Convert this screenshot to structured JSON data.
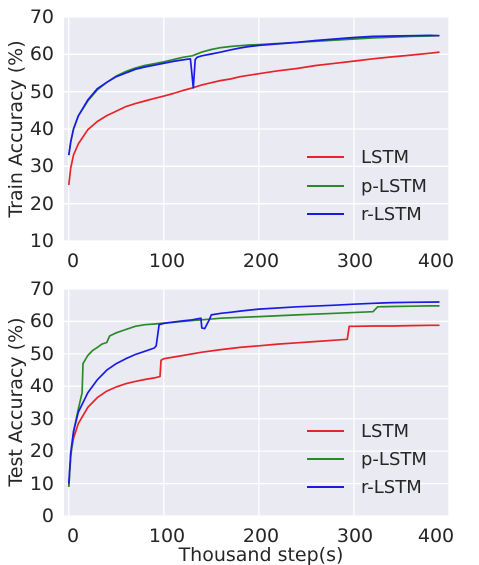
{
  "chart_data": [
    {
      "type": "line",
      "xlabel": "",
      "ylabel": "Train Accuracy (%)",
      "xlim": [
        -5,
        400
      ],
      "ylim": [
        10,
        70
      ],
      "xticks": [
        "0",
        "100",
        "200",
        "300",
        "400"
      ],
      "yticks": [
        "10",
        "20",
        "30",
        "40",
        "50",
        "60",
        "70"
      ],
      "grid": true,
      "legend_position": "lower-right",
      "series": [
        {
          "name": "LSTM",
          "color": "#e8222a",
          "x": [
            0,
            2,
            5,
            10,
            20,
            30,
            40,
            50,
            60,
            70,
            80,
            90,
            100,
            110,
            120,
            130,
            140,
            150,
            160,
            170,
            180,
            190,
            200,
            220,
            240,
            260,
            280,
            300,
            320,
            340,
            360,
            380,
            390
          ],
          "y": [
            25,
            29.5,
            33,
            36,
            39.8,
            42,
            43.6,
            44.8,
            46,
            46.8,
            47.5,
            48.2,
            48.8,
            49.5,
            50.3,
            51,
            51.8,
            52.4,
            53,
            53.4,
            54,
            54.4,
            54.8,
            55.6,
            56.2,
            57,
            57.6,
            58.2,
            58.8,
            59.3,
            59.8,
            60.3,
            60.6
          ]
        },
        {
          "name": "p-LSTM",
          "color": "#2a8a2a",
          "x": [
            0,
            2,
            5,
            10,
            20,
            30,
            40,
            50,
            60,
            70,
            80,
            90,
            100,
            110,
            120,
            130,
            140,
            150,
            160,
            170,
            180,
            190,
            200,
            220,
            240,
            260,
            280,
            300,
            320,
            340,
            360,
            380,
            390
          ],
          "y": [
            33,
            36.5,
            40,
            43.5,
            47.5,
            50.5,
            52.5,
            54.2,
            55.4,
            56.3,
            57,
            57.5,
            58,
            58.6,
            59.2,
            59.6,
            60.6,
            61.3,
            61.8,
            62.1,
            62.3,
            62.5,
            62.6,
            62.9,
            63.2,
            63.5,
            63.8,
            64.1,
            64.4,
            64.6,
            64.8,
            64.9,
            65
          ]
        },
        {
          "name": "r-LSTM",
          "color": "#1a1ae6",
          "x": [
            0,
            2,
            5,
            10,
            20,
            30,
            40,
            50,
            60,
            70,
            80,
            90,
            100,
            110,
            120,
            128,
            131,
            133,
            135,
            140,
            150,
            160,
            170,
            180,
            190,
            200,
            220,
            240,
            260,
            280,
            300,
            320,
            340,
            360,
            380,
            390
          ],
          "y": [
            33,
            36.5,
            40,
            43.5,
            47.8,
            50.8,
            52.5,
            54,
            55,
            56,
            56.6,
            57.1,
            57.6,
            58.1,
            58.5,
            58.8,
            51,
            58.6,
            59.2,
            59.6,
            60.1,
            60.6,
            61.2,
            61.7,
            62.1,
            62.4,
            62.8,
            63.2,
            63.7,
            64.1,
            64.5,
            64.8,
            64.9,
            65,
            65.1,
            65
          ]
        }
      ]
    },
    {
      "type": "line",
      "xlabel": "Thousand step(s)",
      "ylabel": "Test Accuracy (%)",
      "xlim": [
        -5,
        400
      ],
      "ylim": [
        0,
        70
      ],
      "xticks": [
        "0",
        "100",
        "200",
        "300",
        "400"
      ],
      "yticks": [
        "0",
        "10",
        "20",
        "30",
        "40",
        "50",
        "60",
        "70"
      ],
      "grid": true,
      "legend_position": "lower-right",
      "series": [
        {
          "name": "LSTM",
          "color": "#e8222a",
          "x": [
            0,
            2,
            5,
            10,
            20,
            30,
            40,
            50,
            60,
            70,
            80,
            90,
            96,
            97,
            100,
            110,
            120,
            140,
            160,
            180,
            200,
            220,
            240,
            260,
            280,
            293,
            295,
            300,
            320,
            340,
            360,
            380,
            390
          ],
          "y": [
            9,
            19,
            24,
            28.5,
            33.5,
            36.5,
            38.5,
            39.8,
            40.8,
            41.5,
            42.1,
            42.6,
            43,
            48,
            48.5,
            49,
            49.5,
            50.5,
            51.3,
            52,
            52.5,
            53,
            53.4,
            53.8,
            54.2,
            54.5,
            58.5,
            58.5,
            58.6,
            58.6,
            58.7,
            58.8,
            58.8
          ]
        },
        {
          "name": "p-LSTM",
          "color": "#2a8a2a",
          "x": [
            0,
            2,
            5,
            10,
            14,
            15,
            20,
            25,
            30,
            35,
            40,
            43,
            50,
            60,
            70,
            80,
            90,
            100,
            120,
            140,
            160,
            200,
            240,
            280,
            320,
            325,
            340,
            360,
            380,
            390
          ],
          "y": [
            9,
            18,
            26,
            33,
            38,
            47,
            49.5,
            51,
            52,
            53,
            53.5,
            55.5,
            56.5,
            57.5,
            58.5,
            59,
            59.2,
            59.5,
            60,
            60.5,
            61,
            61.5,
            62,
            62.5,
            63,
            64.5,
            64.6,
            64.7,
            64.8,
            64.8
          ]
        },
        {
          "name": "r-LSTM",
          "color": "#1a1ae6",
          "x": [
            0,
            2,
            5,
            10,
            20,
            30,
            40,
            50,
            60,
            70,
            80,
            90,
            92,
            95,
            100,
            110,
            120,
            130,
            139,
            140,
            143,
            148,
            150,
            160,
            170,
            180,
            200,
            240,
            280,
            300,
            320,
            340,
            360,
            390
          ],
          "y": [
            10,
            19.5,
            26,
            32,
            38,
            42,
            45,
            47,
            48.5,
            49.8,
            50.8,
            51.8,
            52.5,
            59,
            59.4,
            59.8,
            60.2,
            60.5,
            61,
            58,
            57.8,
            60.6,
            62,
            62.5,
            62.8,
            63.2,
            63.8,
            64.5,
            65,
            65.3,
            65.6,
            65.8,
            65.9,
            66
          ]
        }
      ]
    }
  ]
}
